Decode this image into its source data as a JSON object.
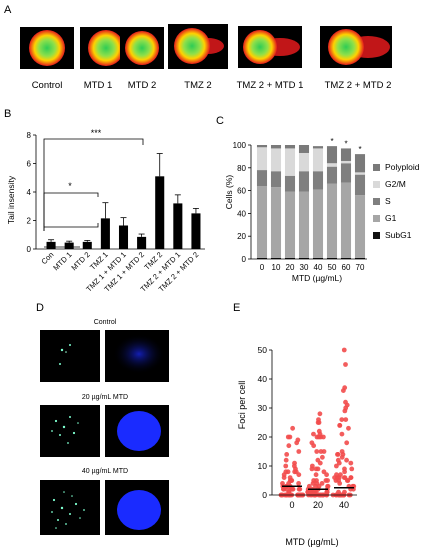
{
  "figure": {
    "panels": [
      "A",
      "B",
      "C",
      "D",
      "E"
    ]
  },
  "panel_a": {
    "conditions": [
      "Control",
      "MTD 1",
      "MTD 2",
      "TMZ 2",
      "TMZ 2 + MTD 1",
      "TMZ 2 + MTD 2"
    ]
  },
  "panel_d": {
    "titles": [
      "Control",
      "20 µg/mL MTD",
      "40 µg/mL MTD"
    ]
  },
  "colors": {
    "bar_b": "#000000",
    "comet_outer": "#e31a1c",
    "comet_mid": "#ffd200",
    "comet_core": "#2ecc55",
    "subg1": "#111111",
    "g1": "#a6a6a6",
    "s": "#7f7f7f",
    "g2m": "#d9d9d9",
    "polyploid": "#7a7a7a",
    "nucleus": "#1a2bff",
    "foci": "#f24b4b"
  },
  "chart_data": [
    {
      "panel": "B",
      "type": "bar",
      "ylabel": "Tail insensity",
      "categories": [
        "Con",
        "MTD 1",
        "MTD 2",
        "TMZ 1",
        "TMZ 1 + MTD 1",
        "TMZ 1 + MTD 2",
        "TMZ 2",
        "TMZ 2 + MTD 1",
        "TMZ 2 + MTD 2"
      ],
      "values": [
        0.5,
        0.45,
        0.5,
        2.15,
        1.65,
        0.85,
        5.1,
        3.2,
        2.5
      ],
      "errors": [
        0.15,
        0.1,
        0.1,
        1.1,
        0.55,
        0.2,
        1.6,
        0.6,
        0.35
      ],
      "ylim": [
        0,
        8
      ],
      "yticks": [
        "0",
        "2",
        "4",
        "6",
        "8"
      ],
      "annotations": [
        "*",
        "***"
      ]
    },
    {
      "panel": "C",
      "type": "bar",
      "stacked": true,
      "xlabel": "MTD (µg/mL)",
      "ylabel": "Cells (%)",
      "categories": [
        "0",
        "10",
        "20",
        "30",
        "40",
        "50",
        "60",
        "70"
      ],
      "ylim": [
        0,
        100
      ],
      "yticks": [
        "0",
        "20",
        "40",
        "60",
        "80",
        "100"
      ],
      "legend_position": "right",
      "legend": [
        "Polyploid",
        "G2/M",
        "S",
        "G1",
        "SubG1"
      ],
      "series": [
        {
          "name": "SubG1",
          "values": [
            1,
            1,
            1,
            1,
            1,
            1,
            1,
            1
          ]
        },
        {
          "name": "G1",
          "values": [
            63,
            62,
            58,
            58,
            60,
            65,
            66,
            55
          ]
        },
        {
          "name": "S",
          "values": [
            14,
            14,
            14,
            18,
            16,
            15,
            17,
            18
          ]
        },
        {
          "name": "G2/M",
          "values": [
            20,
            20,
            24,
            16,
            20,
            3,
            2,
            2
          ]
        },
        {
          "name": "Polyploid",
          "values": [
            2,
            3,
            3,
            7,
            2,
            15,
            11,
            16
          ]
        }
      ],
      "significance": [
        "",
        "",
        "",
        "",
        "",
        "*",
        "*",
        "*"
      ]
    },
    {
      "panel": "E",
      "type": "scatter",
      "xlabel": "MTD (µg/mL)",
      "ylabel": "Foci per cell",
      "categories": [
        "0",
        "20",
        "40"
      ],
      "ylim": [
        0,
        50
      ],
      "yticks": [
        "0",
        "10",
        "20",
        "30",
        "40",
        "50"
      ],
      "medians": [
        3,
        2,
        2.5
      ],
      "max_values": [
        23,
        28,
        50
      ]
    }
  ]
}
